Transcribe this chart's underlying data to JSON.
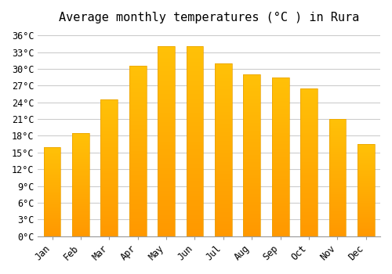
{
  "title": "Average monthly temperatures (°C ) in Rura",
  "months": [
    "Jan",
    "Feb",
    "Mar",
    "Apr",
    "May",
    "Jun",
    "Jul",
    "Aug",
    "Sep",
    "Oct",
    "Nov",
    "Dec"
  ],
  "temperatures": [
    16,
    18.5,
    24.5,
    30.5,
    34,
    34,
    31,
    29,
    28.5,
    26.5,
    21,
    16.5
  ],
  "bar_color_top": "#FFC107",
  "bar_color_bottom": "#FF9800",
  "background_color": "#ffffff",
  "grid_color": "#cccccc",
  "yticks": [
    0,
    3,
    6,
    9,
    12,
    15,
    18,
    21,
    24,
    27,
    30,
    33,
    36
  ],
  "ytick_labels": [
    "0°C",
    "3°C",
    "6°C",
    "9°C",
    "12°C",
    "15°C",
    "18°C",
    "21°C",
    "24°C",
    "27°C",
    "30°C",
    "33°C",
    "36°C"
  ],
  "ylim": [
    0,
    37
  ],
  "title_fontsize": 11,
  "tick_fontsize": 8.5,
  "xlabel_rotation": 45,
  "figsize": [
    5.0,
    3.5
  ],
  "dpi": 100
}
